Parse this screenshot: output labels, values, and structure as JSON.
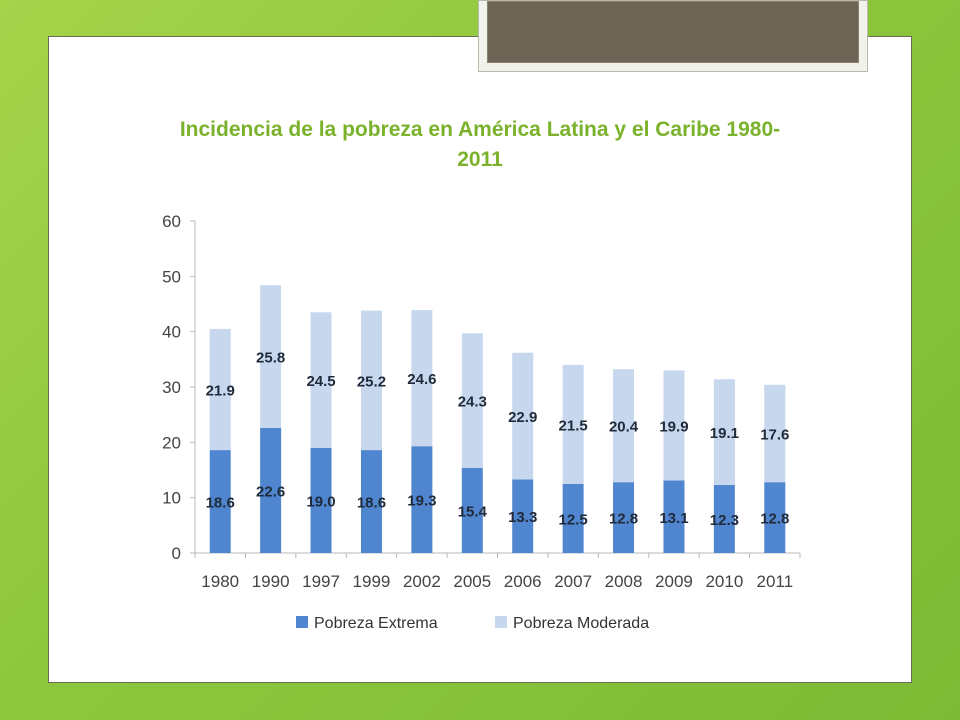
{
  "title_line1": "Incidencia de la pobreza en América Latina y el Caribe  1980-",
  "title_line2": "2011",
  "colors": {
    "extrema": "#4f86cf",
    "moderada": "#c6d7ee",
    "title": "#7bb22c"
  },
  "chart_data": {
    "type": "bar",
    "stacked": true,
    "title": "Incidencia de la pobreza en América Latina y el Caribe  1980-2011",
    "categories": [
      "1980",
      "1990",
      "1997",
      "1999",
      "2002",
      "2005",
      "2006",
      "2007",
      "2008",
      "2009",
      "2010",
      "2011"
    ],
    "series": [
      {
        "name": "Pobreza Extrema",
        "values": [
          18.6,
          22.6,
          19.0,
          18.6,
          19.3,
          15.4,
          13.3,
          12.5,
          12.8,
          13.1,
          12.3,
          12.8
        ]
      },
      {
        "name": "Pobreza Moderada",
        "values": [
          21.9,
          25.8,
          24.5,
          25.2,
          24.6,
          24.3,
          22.9,
          21.5,
          20.4,
          19.9,
          19.1,
          17.6
        ]
      }
    ],
    "data_labels": {
      "extrema": [
        "18.6",
        "22.6",
        "19.0",
        "18.6",
        "19.3",
        "15.4",
        "13.3",
        "12.5",
        "12.8",
        "13.1",
        "12.3",
        "12.8"
      ],
      "moderada": [
        "21.9",
        "25.8",
        "24.5",
        "25.2",
        "24.6",
        "24.3",
        "22.9",
        "21.5",
        "20.4",
        "19.9",
        "19.1",
        "17.6"
      ]
    },
    "yticks": [
      "0",
      "10",
      "20",
      "30",
      "40",
      "50",
      "60"
    ],
    "ylim": [
      0,
      60
    ],
    "grid": false,
    "legend_position": "bottom"
  }
}
